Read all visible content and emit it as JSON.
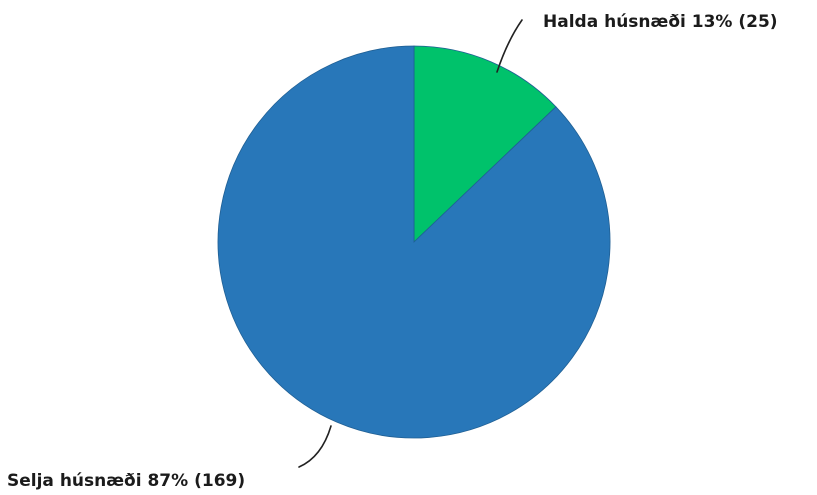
{
  "chart_data": {
    "type": "pie",
    "title": "",
    "slices": [
      {
        "label": "Halda húsnæði",
        "percent": 13,
        "count": 25,
        "display": "Halda húsnæði 13% (25)",
        "color": "#00c26b"
      },
      {
        "label": "Selja húsnæði",
        "percent": 87,
        "count": 169,
        "display": "Selja húsnæði 87% (169)",
        "color": "#2877b9"
      }
    ],
    "start_angle": "12 o'clock",
    "direction": "clockwise"
  }
}
